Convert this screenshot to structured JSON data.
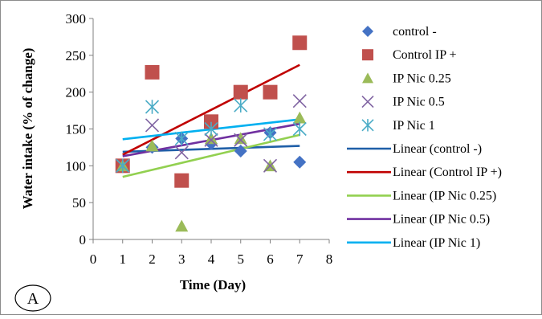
{
  "chart_data": {
    "type": "scatter",
    "xlabel": "Time (Day)",
    "ylabel": "Water intake (% of change)",
    "xlim": [
      0,
      8
    ],
    "ylim": [
      0,
      300
    ],
    "xticks": [
      0,
      1,
      2,
      3,
      4,
      5,
      6,
      7,
      8
    ],
    "yticks": [
      0,
      50,
      100,
      150,
      200,
      250,
      300
    ],
    "grid": false,
    "legend_position": "right",
    "panel_label": "A",
    "series": [
      {
        "name": "control -",
        "marker": "diamond",
        "color": "#4472C4",
        "x": [
          1,
          2,
          3,
          4,
          5,
          6,
          7
        ],
        "y": [
          100,
          125,
          137,
          130,
          120,
          145,
          105
        ]
      },
      {
        "name": "Control IP +",
        "marker": "square",
        "color": "#C0504D",
        "x": [
          1,
          2,
          3,
          4,
          5,
          6,
          7
        ],
        "y": [
          100,
          227,
          80,
          160,
          200,
          200,
          267
        ]
      },
      {
        "name": "IP Nic 0.25",
        "marker": "triangle",
        "color": "#9BBB59",
        "x": [
          1,
          2,
          3,
          4,
          5,
          6,
          7
        ],
        "y": [
          100,
          127,
          18,
          137,
          137,
          100,
          165
        ]
      },
      {
        "name": "IP Nic 0.5",
        "marker": "x",
        "color": "#8064A2",
        "x": [
          1,
          2,
          3,
          4,
          5,
          6,
          7
        ],
        "y": [
          100,
          155,
          118,
          135,
          135,
          100,
          188
        ]
      },
      {
        "name": "IP Nic 1",
        "marker": "asterisk",
        "color": "#4BACC6",
        "x": [
          1,
          2,
          3,
          4,
          5,
          6,
          7
        ],
        "y": [
          100,
          180,
          137,
          150,
          182,
          143,
          150
        ]
      }
    ],
    "trendlines": [
      {
        "name": "Linear (control -)",
        "color": "#1F5FA8",
        "y_at_x1": 119,
        "y_at_x7": 127
      },
      {
        "name": "Linear (Control IP +)",
        "color": "#C00000",
        "y_at_x1": 115,
        "y_at_x7": 237
      },
      {
        "name": "Linear (IP Nic 0.25)",
        "color": "#92D050",
        "y_at_x1": 85,
        "y_at_x7": 142
      },
      {
        "name": "Linear (IP Nic 0.5)",
        "color": "#7030A0",
        "y_at_x1": 113,
        "y_at_x7": 157
      },
      {
        "name": "Linear (IP Nic 1)",
        "color": "#00B0F0",
        "y_at_x1": 136,
        "y_at_x7": 163
      }
    ]
  }
}
